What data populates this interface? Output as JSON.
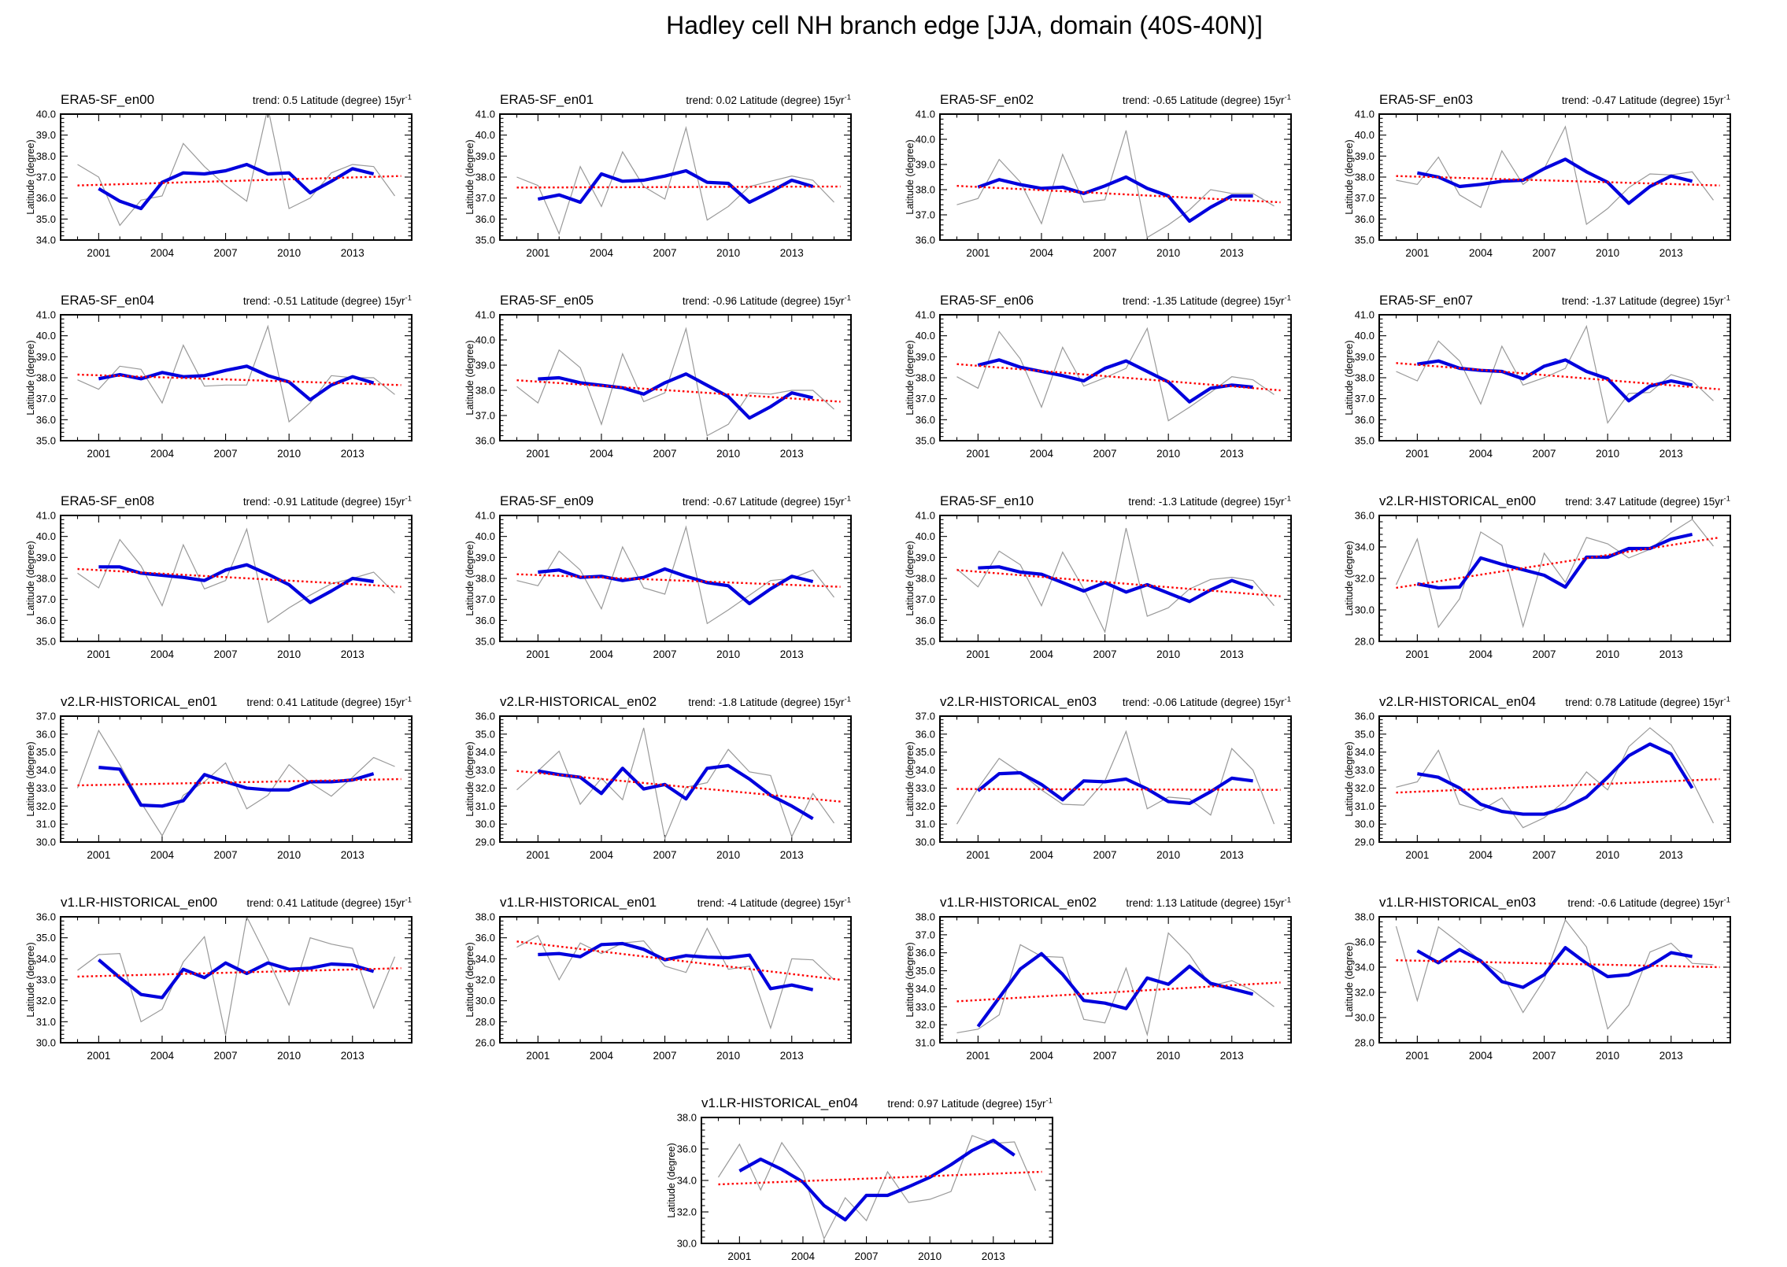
{
  "page_title": "Hadley cell NH branch edge [JJA, domain (40S-40N)]",
  "layout_labels": {
    "ylabel": "Latitude (degree)",
    "trend_prefix": "trend:",
    "trend_unit": "Latitude (degree) 15yr",
    "trend_exponent": "-1",
    "xtick_labels": [
      "2001",
      "2004",
      "2007",
      "2010",
      "2013"
    ]
  },
  "colors": {
    "raw": "#999999",
    "smoothed": "#0000dd",
    "trend": "#ff0000",
    "axis": "#000000"
  },
  "chart_data": [
    {
      "type": "line",
      "title": "ERA5-SF_en00",
      "trend": "0.5",
      "ylim": [
        34,
        40
      ],
      "ytick_step": 1,
      "x_raw_start": 2000,
      "raw": [
        37.6,
        37.0,
        34.7,
        35.9,
        36.1,
        38.6,
        37.5,
        36.6,
        35.85,
        40.3,
        35.5,
        36.0,
        37.2,
        37.6,
        37.5,
        36.1
      ],
      "x_smoothed_start": 2001,
      "smoothed": [
        36.45,
        35.85,
        35.5,
        36.75,
        37.2,
        37.15,
        37.3,
        37.6,
        37.15,
        37.2,
        36.25,
        36.8,
        37.4,
        37.15
      ],
      "trendline": {
        "x": [
          2000,
          2015.3
        ],
        "y": [
          36.6,
          37.05
        ]
      }
    },
    {
      "type": "line",
      "title": "ERA5-SF_en01",
      "trend": "0.02",
      "ylim": [
        35,
        41
      ],
      "ytick_step": 1,
      "x_raw_start": 2000,
      "raw": [
        38.0,
        37.6,
        35.3,
        38.5,
        36.6,
        39.2,
        37.55,
        36.95,
        40.35,
        35.95,
        36.6,
        37.55,
        37.8,
        38.05,
        37.85,
        36.8
      ],
      "x_smoothed_start": 2001,
      "smoothed": [
        36.95,
        37.15,
        36.8,
        38.15,
        37.8,
        37.85,
        38.05,
        38.3,
        37.75,
        37.7,
        36.8,
        37.3,
        37.85,
        37.55
      ],
      "trendline": {
        "x": [
          2000,
          2015.3
        ],
        "y": [
          37.5,
          37.55
        ]
      }
    },
    {
      "type": "line",
      "title": "ERA5-SF_en02",
      "trend": "-0.65",
      "ylim": [
        36,
        41
      ],
      "ytick_step": 1,
      "x_raw_start": 2000,
      "raw": [
        37.4,
        37.65,
        39.2,
        38.3,
        36.65,
        39.4,
        37.5,
        37.6,
        40.35,
        36.1,
        36.6,
        37.2,
        38.0,
        37.85,
        37.85,
        37.35
      ],
      "x_smoothed_start": 2001,
      "smoothed": [
        38.1,
        38.4,
        38.2,
        38.05,
        38.1,
        37.85,
        38.15,
        38.5,
        38.05,
        37.75,
        36.75,
        37.3,
        37.75,
        37.75
      ],
      "trendline": {
        "x": [
          2000,
          2015.3
        ],
        "y": [
          38.15,
          37.5
        ]
      }
    },
    {
      "type": "line",
      "title": "ERA5-SF_en03",
      "trend": "-0.47",
      "ylim": [
        35,
        41
      ],
      "ytick_step": 1,
      "x_raw_start": 2000,
      "raw": [
        37.85,
        37.65,
        38.95,
        37.15,
        36.55,
        39.25,
        37.65,
        38.4,
        40.4,
        35.75,
        36.5,
        37.5,
        38.15,
        38.1,
        38.25,
        36.9
      ],
      "x_smoothed_start": 2001,
      "smoothed": [
        38.2,
        38.0,
        37.55,
        37.65,
        37.8,
        37.85,
        38.4,
        38.85,
        38.25,
        37.75,
        36.75,
        37.55,
        38.05,
        37.8
      ],
      "trendline": {
        "x": [
          2000,
          2015.3
        ],
        "y": [
          38.05,
          37.6
        ]
      }
    },
    {
      "type": "line",
      "title": "ERA5-SF_en04",
      "trend": "-0.51",
      "ylim": [
        35,
        41
      ],
      "ytick_step": 1,
      "x_raw_start": 2000,
      "raw": [
        37.9,
        37.45,
        38.55,
        38.4,
        36.8,
        39.55,
        37.6,
        37.65,
        37.65,
        40.45,
        35.9,
        36.8,
        38.1,
        38.0,
        38.0,
        37.2
      ],
      "x_smoothed_start": 2001,
      "smoothed": [
        37.95,
        38.15,
        37.95,
        38.25,
        38.05,
        38.1,
        38.35,
        38.55,
        38.1,
        37.8,
        36.95,
        37.65,
        38.05,
        37.75
      ],
      "trendline": {
        "x": [
          2000,
          2015.3
        ],
        "y": [
          38.15,
          37.65
        ]
      }
    },
    {
      "type": "line",
      "title": "ERA5-SF_en05",
      "trend": "-0.96",
      "ylim": [
        36,
        41
      ],
      "ytick_step": 1,
      "x_raw_start": 2000,
      "raw": [
        38.15,
        37.5,
        39.6,
        38.9,
        36.65,
        39.45,
        37.55,
        37.9,
        40.45,
        36.2,
        36.65,
        37.9,
        37.85,
        38.0,
        38.0,
        37.25
      ],
      "x_smoothed_start": 2001,
      "smoothed": [
        38.45,
        38.5,
        38.3,
        38.2,
        38.1,
        37.85,
        38.3,
        38.65,
        38.2,
        37.75,
        36.9,
        37.35,
        37.9,
        37.7
      ],
      "trendline": {
        "x": [
          2000,
          2015.3
        ],
        "y": [
          38.4,
          37.55
        ]
      }
    },
    {
      "type": "line",
      "title": "ERA5-SF_en06",
      "trend": "-1.35",
      "ylim": [
        35,
        41
      ],
      "ytick_step": 1,
      "x_raw_start": 2000,
      "raw": [
        38.05,
        37.5,
        40.2,
        38.9,
        36.6,
        39.45,
        37.6,
        38.0,
        38.45,
        40.35,
        35.95,
        36.6,
        37.3,
        38.05,
        37.9,
        37.2
      ],
      "x_smoothed_start": 2001,
      "smoothed": [
        38.6,
        38.85,
        38.5,
        38.3,
        38.1,
        37.85,
        38.45,
        38.8,
        38.3,
        37.8,
        36.85,
        37.5,
        37.65,
        37.55
      ],
      "trendline": {
        "x": [
          2000,
          2015.3
        ],
        "y": [
          38.65,
          37.4
        ]
      }
    },
    {
      "type": "line",
      "title": "ERA5-SF_en07",
      "trend": "-1.37",
      "ylim": [
        35,
        41
      ],
      "ytick_step": 1,
      "x_raw_start": 2000,
      "raw": [
        38.3,
        37.85,
        39.75,
        38.8,
        36.75,
        39.5,
        37.65,
        38.0,
        38.45,
        40.45,
        35.85,
        37.25,
        37.3,
        38.15,
        37.85,
        36.9
      ],
      "x_smoothed_start": 2001,
      "smoothed": [
        38.65,
        38.8,
        38.45,
        38.35,
        38.3,
        37.95,
        38.55,
        38.85,
        38.3,
        37.95,
        36.9,
        37.6,
        37.85,
        37.65
      ],
      "trendline": {
        "x": [
          2000,
          2015.3
        ],
        "y": [
          38.7,
          37.45
        ]
      }
    },
    {
      "type": "line",
      "title": "ERA5-SF_en08",
      "trend": "-0.91",
      "ylim": [
        35,
        41
      ],
      "ytick_step": 1,
      "x_raw_start": 2000,
      "raw": [
        38.25,
        37.55,
        39.85,
        38.6,
        36.7,
        39.6,
        37.5,
        37.9,
        40.35,
        35.9,
        36.6,
        37.2,
        37.75,
        38.0,
        38.3,
        37.3
      ],
      "x_smoothed_start": 2001,
      "smoothed": [
        38.55,
        38.55,
        38.25,
        38.15,
        38.05,
        37.9,
        38.4,
        38.65,
        38.2,
        37.7,
        36.85,
        37.4,
        38.0,
        37.85
      ],
      "trendline": {
        "x": [
          2000,
          2015.3
        ],
        "y": [
          38.45,
          37.6
        ]
      }
    },
    {
      "type": "line",
      "title": "ERA5-SF_en09",
      "trend": "-0.67",
      "ylim": [
        35,
        41
      ],
      "ytick_step": 1,
      "x_raw_start": 2000,
      "raw": [
        37.9,
        37.65,
        39.3,
        38.4,
        36.55,
        39.5,
        37.55,
        37.25,
        40.45,
        35.85,
        36.5,
        37.2,
        37.9,
        38.0,
        38.4,
        37.1
      ],
      "x_smoothed_start": 2001,
      "smoothed": [
        38.3,
        38.4,
        38.05,
        38.1,
        37.9,
        38.05,
        38.45,
        38.1,
        37.8,
        37.65,
        36.8,
        37.5,
        38.1,
        37.85
      ],
      "trendline": {
        "x": [
          2000,
          2015.3
        ],
        "y": [
          38.2,
          37.6
        ]
      }
    },
    {
      "type": "line",
      "title": "ERA5-SF_en10",
      "trend": "-1.3",
      "ylim": [
        35,
        41
      ],
      "ytick_step": 1,
      "x_raw_start": 2000,
      "raw": [
        38.45,
        37.6,
        39.3,
        38.65,
        36.7,
        39.25,
        37.5,
        35.45,
        40.4,
        36.2,
        36.6,
        37.5,
        37.95,
        38.05,
        37.9,
        36.7
      ],
      "x_smoothed_start": 2001,
      "smoothed": [
        38.5,
        38.55,
        38.3,
        38.2,
        37.8,
        37.4,
        37.8,
        37.35,
        37.7,
        37.3,
        36.9,
        37.45,
        37.9,
        37.55
      ],
      "trendline": {
        "x": [
          2000,
          2015.3
        ],
        "y": [
          38.4,
          37.15
        ]
      }
    },
    {
      "type": "line",
      "title": "v2.LR-HISTORICAL_en00",
      "trend": "3.47",
      "ylim": [
        28,
        36
      ],
      "ytick_step": 2,
      "x_raw_start": 2000,
      "raw": [
        31.6,
        34.5,
        28.9,
        30.7,
        34.95,
        34.1,
        28.95,
        33.6,
        31.75,
        34.6,
        34.2,
        33.3,
        33.85,
        34.9,
        35.75,
        34.05
      ],
      "x_smoothed_start": 2001,
      "smoothed": [
        31.65,
        31.4,
        31.45,
        33.3,
        32.9,
        32.55,
        32.2,
        31.45,
        33.35,
        33.35,
        33.9,
        33.9,
        34.5,
        34.8
      ],
      "trendline": {
        "x": [
          2000,
          2015.3
        ],
        "y": [
          31.4,
          34.6
        ]
      }
    },
    {
      "type": "line",
      "title": "v2.LR-HISTORICAL_en01",
      "trend": "0.41",
      "ylim": [
        30,
        37
      ],
      "ytick_step": 1,
      "x_raw_start": 2000,
      "raw": [
        33.0,
        36.2,
        34.3,
        32.2,
        30.35,
        32.6,
        33.35,
        34.4,
        31.85,
        32.6,
        34.3,
        33.3,
        32.55,
        33.6,
        34.7,
        34.2
      ],
      "x_smoothed_start": 2001,
      "smoothed": [
        34.15,
        34.05,
        32.05,
        32.0,
        32.3,
        33.75,
        33.35,
        33.0,
        32.9,
        32.9,
        33.35,
        33.35,
        33.45,
        33.8
      ],
      "trendline": {
        "x": [
          2000,
          2015.3
        ],
        "y": [
          33.15,
          33.5
        ]
      }
    },
    {
      "type": "line",
      "title": "v2.LR-HISTORICAL_en02",
      "trend": "-1.8",
      "ylim": [
        29,
        36
      ],
      "ytick_step": 1,
      "x_raw_start": 2000,
      "raw": [
        31.9,
        32.95,
        34.05,
        31.1,
        32.55,
        31.35,
        35.35,
        29.2,
        32.05,
        32.3,
        34.15,
        32.9,
        32.7,
        29.3,
        31.7,
        30.05
      ],
      "x_smoothed_start": 2001,
      "smoothed": [
        32.95,
        32.75,
        32.6,
        31.7,
        33.1,
        31.95,
        32.2,
        31.4,
        33.1,
        33.25,
        32.5,
        31.6,
        31.0,
        30.3
      ],
      "trendline": {
        "x": [
          2000,
          2015.3
        ],
        "y": [
          32.95,
          31.25
        ]
      }
    },
    {
      "type": "line",
      "title": "v2.LR-HISTORICAL_en03",
      "trend": "-0.06",
      "ylim": [
        30,
        37
      ],
      "ytick_step": 1,
      "x_raw_start": 2000,
      "raw": [
        31.0,
        33.0,
        34.65,
        33.85,
        32.9,
        32.1,
        32.05,
        33.4,
        36.15,
        31.85,
        32.5,
        32.4,
        31.5,
        35.2,
        34.0,
        31.0
      ],
      "x_smoothed_start": 2001,
      "smoothed": [
        32.85,
        33.8,
        33.85,
        33.2,
        32.35,
        33.4,
        33.35,
        33.5,
        32.95,
        32.25,
        32.15,
        32.8,
        33.55,
        33.4
      ],
      "trendline": {
        "x": [
          2000,
          2015.3
        ],
        "y": [
          32.95,
          32.9
        ]
      }
    },
    {
      "type": "line",
      "title": "v2.LR-HISTORICAL_en04",
      "trend": "0.78",
      "ylim": [
        29,
        36
      ],
      "ytick_step": 1,
      "x_raw_start": 2000,
      "raw": [
        32.05,
        32.35,
        34.1,
        31.1,
        30.75,
        31.45,
        29.8,
        30.35,
        31.3,
        32.9,
        31.9,
        34.3,
        35.35,
        34.4,
        32.4,
        30.05
      ],
      "x_smoothed_start": 2001,
      "smoothed": [
        32.8,
        32.6,
        32.0,
        31.1,
        30.7,
        30.55,
        30.55,
        30.9,
        31.5,
        32.6,
        33.8,
        34.45,
        33.9,
        32.0
      ],
      "trendline": {
        "x": [
          2000,
          2015.3
        ],
        "y": [
          31.75,
          32.5
        ]
      }
    },
    {
      "type": "line",
      "title": "v1.LR-HISTORICAL_en00",
      "trend": "0.41",
      "ylim": [
        30,
        36
      ],
      "ytick_step": 1,
      "x_raw_start": 2000,
      "raw": [
        33.45,
        34.2,
        34.25,
        31.0,
        31.6,
        33.85,
        35.05,
        30.35,
        36.0,
        34.0,
        31.8,
        35.0,
        34.7,
        34.5,
        31.65,
        34.1
      ],
      "x_smoothed_start": 2001,
      "smoothed": [
        33.95,
        33.1,
        32.3,
        32.15,
        33.5,
        33.1,
        33.8,
        33.3,
        33.8,
        33.5,
        33.55,
        33.75,
        33.7,
        33.4
      ],
      "trendline": {
        "x": [
          2000,
          2015.3
        ],
        "y": [
          33.15,
          33.55
        ]
      }
    },
    {
      "type": "line",
      "title": "v1.LR-HISTORICAL_en01",
      "trend": "-4",
      "ylim": [
        26,
        38
      ],
      "ytick_step": 2,
      "x_raw_start": 2000,
      "raw": [
        35.1,
        36.2,
        32.0,
        35.5,
        34.5,
        35.5,
        35.7,
        33.3,
        32.7,
        36.9,
        33.0,
        33.3,
        27.4,
        34.0,
        33.9,
        32.0
      ],
      "x_smoothed_start": 2001,
      "smoothed": [
        34.4,
        34.5,
        34.2,
        35.35,
        35.45,
        34.9,
        33.9,
        34.3,
        34.15,
        34.1,
        34.35,
        31.15,
        31.5,
        31.05
      ],
      "trendline": {
        "x": [
          2000,
          2015.3
        ],
        "y": [
          35.65,
          32.0
        ]
      }
    },
    {
      "type": "line",
      "title": "v1.LR-HISTORICAL_en02",
      "trend": "1.13",
      "ylim": [
        31,
        38
      ],
      "ytick_step": 1,
      "x_raw_start": 2000,
      "raw": [
        31.55,
        31.75,
        32.55,
        36.45,
        35.8,
        35.75,
        32.3,
        32.1,
        35.15,
        31.45,
        37.1,
        35.9,
        34.15,
        34.45,
        33.9,
        33.0
      ],
      "x_smoothed_start": 2001,
      "smoothed": [
        31.9,
        33.5,
        35.1,
        35.95,
        34.8,
        33.35,
        33.2,
        32.9,
        34.6,
        34.25,
        35.25,
        34.3,
        34.0,
        33.7
      ],
      "trendline": {
        "x": [
          2000,
          2015.3
        ],
        "y": [
          33.3,
          34.35
        ]
      }
    },
    {
      "type": "line",
      "title": "v1.LR-HISTORICAL_en03",
      "trend": "-0.6",
      "ylim": [
        28,
        38
      ],
      "ytick_step": 2,
      "x_raw_start": 2000,
      "raw": [
        37.25,
        31.35,
        37.2,
        35.9,
        34.5,
        33.5,
        30.4,
        33.0,
        37.75,
        35.6,
        29.1,
        31.0,
        35.2,
        35.9,
        34.3,
        34.2
      ],
      "x_smoothed_start": 2001,
      "smoothed": [
        35.3,
        34.35,
        35.4,
        34.5,
        32.85,
        32.4,
        33.4,
        35.55,
        34.3,
        33.25,
        33.4,
        34.1,
        35.15,
        34.85
      ],
      "trendline": {
        "x": [
          2000,
          2015.3
        ],
        "y": [
          34.55,
          34.0
        ]
      }
    },
    {
      "type": "line",
      "title": "v1.LR-HISTORICAL_en04",
      "trend": "0.97",
      "ylim": [
        30,
        38
      ],
      "ytick_step": 2,
      "x_raw_start": 2000,
      "raw": [
        34.2,
        36.3,
        33.4,
        36.4,
        34.5,
        30.3,
        32.9,
        31.45,
        34.55,
        32.6,
        32.8,
        33.3,
        36.85,
        36.35,
        36.45,
        33.35
      ],
      "x_smoothed_start": 2001,
      "smoothed": [
        34.6,
        35.35,
        34.7,
        33.9,
        32.4,
        31.5,
        33.05,
        33.05,
        33.6,
        34.2,
        35.0,
        35.9,
        36.55,
        35.6
      ],
      "trendline": {
        "x": [
          2000,
          2015.3
        ],
        "y": [
          33.75,
          34.55
        ]
      }
    }
  ]
}
